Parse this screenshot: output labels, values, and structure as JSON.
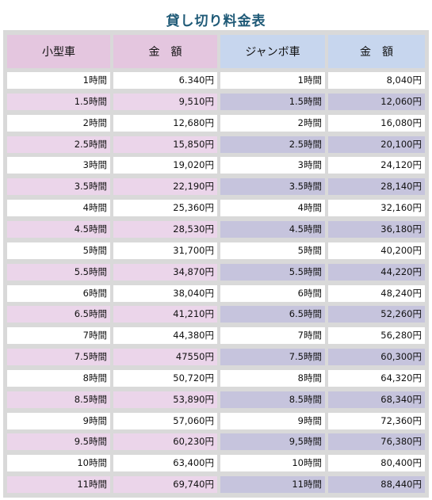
{
  "title": "貸し切り料金表",
  "colors": {
    "header_small": "#e4c6df",
    "header_jumbo": "#c7d6ee",
    "odd_small": "#ffffff",
    "even_small": "#ebd5ea",
    "odd_jumbo": "#ffffff",
    "even_jumbo": "#c6c4dd",
    "title": "#1f5a77"
  },
  "headers": [
    "小型車",
    "金　額",
    "ジャンボ車",
    "金　額"
  ],
  "rows": [
    [
      "1時間",
      "6.340円",
      "1時間",
      "8,040円"
    ],
    [
      "1.5時間",
      "9,510円",
      "1.5時間",
      "12,060円"
    ],
    [
      "2時間",
      "12,680円",
      "2時間",
      "16,080円"
    ],
    [
      "2.5時間",
      "15,850円",
      "2.5時間",
      "20,100円"
    ],
    [
      "3時間",
      "19,020円",
      "3時間",
      "24,120円"
    ],
    [
      "3.5時間",
      "22,190円",
      "3.5時間",
      "28,140円"
    ],
    [
      "4時間",
      "25,360円",
      "4時間",
      "32,160円"
    ],
    [
      "4.5時間",
      "28,530円",
      "4.5時間",
      "36,180円"
    ],
    [
      "5時間",
      "31,700円",
      "5時間",
      "40,200円"
    ],
    [
      "5.5時間",
      "34,870円",
      "5.5時間",
      "44,220円"
    ],
    [
      "6時間",
      "38,040円",
      "6時間",
      "48,240円"
    ],
    [
      "6.5時間",
      "41,210円",
      "6.5時間",
      "52,260円"
    ],
    [
      "7時間",
      "44,380円",
      "7時間",
      "56,280円"
    ],
    [
      "7.5時間",
      "47550円",
      "7.5時間",
      "60,300円"
    ],
    [
      "8時間",
      "50,720円",
      "8時間",
      "64,320円"
    ],
    [
      "8.5時間",
      "53,890円",
      "8.5時間",
      "68,340円"
    ],
    [
      "9時間",
      "57,060円",
      "9時間",
      "72,360円"
    ],
    [
      "9.5時間",
      "60,230円",
      "9,5時間",
      "76,380円"
    ],
    [
      "10時間",
      "63,400円",
      "10時間",
      "80,400円"
    ],
    [
      "11時間",
      "69,740円",
      "11時間",
      "88,440円"
    ]
  ]
}
